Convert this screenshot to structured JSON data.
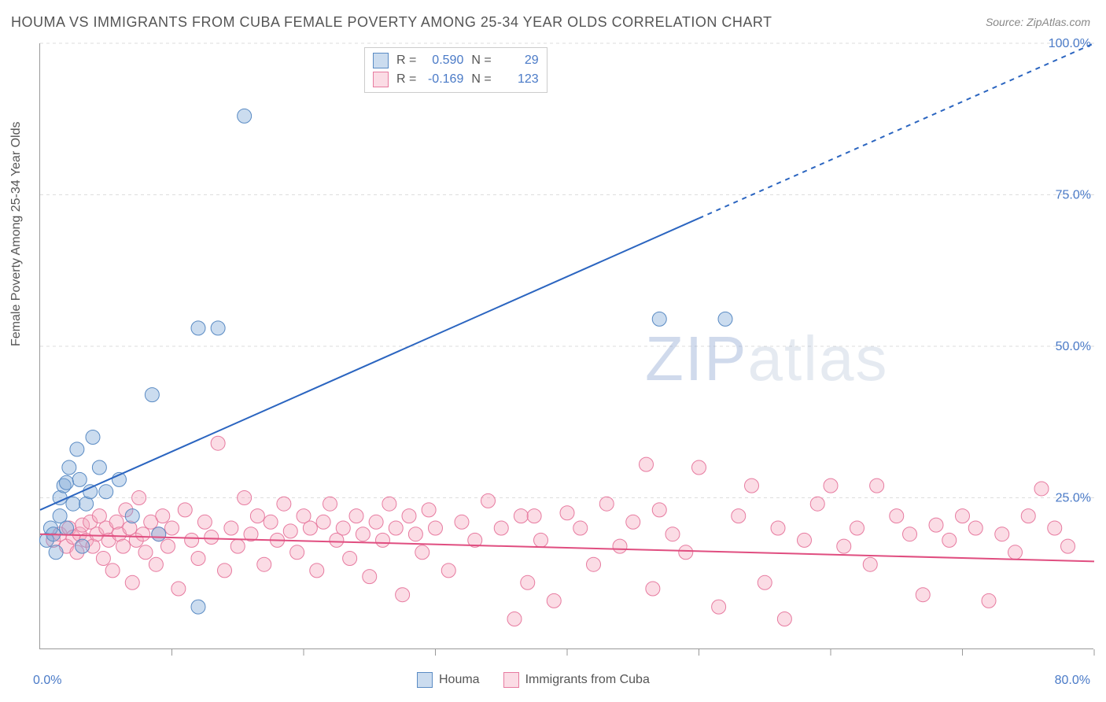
{
  "title": "HOUMA VS IMMIGRANTS FROM CUBA FEMALE POVERTY AMONG 25-34 YEAR OLDS CORRELATION CHART",
  "source": "Source: ZipAtlas.com",
  "y_axis_label": "Female Poverty Among 25-34 Year Olds",
  "watermark": "ZIPatlas",
  "chart": {
    "type": "scatter",
    "background_color": "#ffffff",
    "grid_color": "#dddddd",
    "axis_color": "#999999",
    "xlim": [
      0,
      80
    ],
    "ylim": [
      0,
      100
    ],
    "x_ticks": [
      0,
      10,
      20,
      30,
      40,
      50,
      60,
      70,
      80
    ],
    "y_ticks": [
      25,
      50,
      75,
      100
    ],
    "y_tick_labels": [
      "25.0%",
      "50.0%",
      "75.0%",
      "100.0%"
    ],
    "x_min_label": "0.0%",
    "x_max_label": "80.0%",
    "label_fontsize": 16,
    "tick_color": "#4a7ac7",
    "point_radius": 9,
    "point_opacity": 0.45,
    "series": [
      {
        "name": "Houma",
        "color": "#7ca7d8",
        "fill": "rgba(124,167,216,0.4)",
        "stroke": "#5a8bc4",
        "R": "0.590",
        "N": "29",
        "trend": {
          "x1": 0,
          "y1": 23,
          "x2": 80,
          "y2": 100,
          "solid_until_x": 50,
          "color": "#2b65c0",
          "width": 2
        },
        "points": [
          [
            0.5,
            18
          ],
          [
            0.8,
            20
          ],
          [
            1,
            19
          ],
          [
            1.2,
            16
          ],
          [
            1.5,
            22
          ],
          [
            1.5,
            25
          ],
          [
            1.8,
            27
          ],
          [
            2,
            27.5
          ],
          [
            2,
            20
          ],
          [
            2.2,
            30
          ],
          [
            2.5,
            24
          ],
          [
            2.8,
            33
          ],
          [
            3,
            28
          ],
          [
            3.2,
            17
          ],
          [
            3.5,
            24
          ],
          [
            3.8,
            26
          ],
          [
            4,
            35
          ],
          [
            4.5,
            30
          ],
          [
            5,
            26
          ],
          [
            6,
            28
          ],
          [
            7,
            22
          ],
          [
            8.5,
            42
          ],
          [
            9,
            19
          ],
          [
            12,
            53
          ],
          [
            13.5,
            53
          ],
          [
            12,
            7
          ],
          [
            15.5,
            88
          ],
          [
            47,
            54.5
          ],
          [
            52,
            54.5
          ]
        ]
      },
      {
        "name": "Immigrants from Cuba",
        "color": "#f5a8bd",
        "fill": "rgba(245,168,189,0.4)",
        "stroke": "#e77ba0",
        "R": "-0.169",
        "N": "123",
        "trend": {
          "x1": 0,
          "y1": 19,
          "x2": 80,
          "y2": 14.5,
          "solid_until_x": 80,
          "color": "#e04e80",
          "width": 2
        },
        "points": [
          [
            1,
            18
          ],
          [
            1.5,
            19
          ],
          [
            2,
            17
          ],
          [
            2.2,
            20
          ],
          [
            2.5,
            18.5
          ],
          [
            2.8,
            16
          ],
          [
            3,
            19
          ],
          [
            3.2,
            20.5
          ],
          [
            3.5,
            18
          ],
          [
            3.8,
            21
          ],
          [
            4,
            17
          ],
          [
            4.3,
            19
          ],
          [
            4.5,
            22
          ],
          [
            4.8,
            15
          ],
          [
            5,
            20
          ],
          [
            5.2,
            18
          ],
          [
            5.5,
            13
          ],
          [
            5.8,
            21
          ],
          [
            6,
            19
          ],
          [
            6.3,
            17
          ],
          [
            6.5,
            23
          ],
          [
            6.8,
            20
          ],
          [
            7,
            11
          ],
          [
            7.3,
            18
          ],
          [
            7.5,
            25
          ],
          [
            7.8,
            19
          ],
          [
            8,
            16
          ],
          [
            8.4,
            21
          ],
          [
            8.8,
            14
          ],
          [
            9,
            19
          ],
          [
            9.3,
            22
          ],
          [
            9.7,
            17
          ],
          [
            10,
            20
          ],
          [
            10.5,
            10
          ],
          [
            11,
            23
          ],
          [
            11.5,
            18
          ],
          [
            12,
            15
          ],
          [
            12.5,
            21
          ],
          [
            13,
            18.5
          ],
          [
            13.5,
            34
          ],
          [
            14,
            13
          ],
          [
            14.5,
            20
          ],
          [
            15,
            17
          ],
          [
            15.5,
            25
          ],
          [
            16,
            19
          ],
          [
            16.5,
            22
          ],
          [
            17,
            14
          ],
          [
            17.5,
            21
          ],
          [
            18,
            18
          ],
          [
            18.5,
            24
          ],
          [
            19,
            19.5
          ],
          [
            19.5,
            16
          ],
          [
            20,
            22
          ],
          [
            20.5,
            20
          ],
          [
            21,
            13
          ],
          [
            21.5,
            21
          ],
          [
            22,
            24
          ],
          [
            22.5,
            18
          ],
          [
            23,
            20
          ],
          [
            23.5,
            15
          ],
          [
            24,
            22
          ],
          [
            24.5,
            19
          ],
          [
            25,
            12
          ],
          [
            25.5,
            21
          ],
          [
            26,
            18
          ],
          [
            26.5,
            24
          ],
          [
            27,
            20
          ],
          [
            27.5,
            9
          ],
          [
            28,
            22
          ],
          [
            28.5,
            19
          ],
          [
            29,
            16
          ],
          [
            29.5,
            23
          ],
          [
            30,
            20
          ],
          [
            31,
            13
          ],
          [
            32,
            21
          ],
          [
            33,
            18
          ],
          [
            34,
            24.5
          ],
          [
            35,
            20
          ],
          [
            36,
            5
          ],
          [
            36.5,
            22
          ],
          [
            37,
            11
          ],
          [
            37.5,
            22
          ],
          [
            38,
            18
          ],
          [
            39,
            8
          ],
          [
            40,
            22.5
          ],
          [
            41,
            20
          ],
          [
            42,
            14
          ],
          [
            43,
            24
          ],
          [
            44,
            17
          ],
          [
            45,
            21
          ],
          [
            46,
            30.5
          ],
          [
            46.5,
            10
          ],
          [
            47,
            23
          ],
          [
            48,
            19
          ],
          [
            49,
            16
          ],
          [
            50,
            30
          ],
          [
            51.5,
            7
          ],
          [
            53,
            22
          ],
          [
            54,
            27
          ],
          [
            55,
            11
          ],
          [
            56,
            20
          ],
          [
            56.5,
            5
          ],
          [
            58,
            18
          ],
          [
            59,
            24
          ],
          [
            60,
            27
          ],
          [
            61,
            17
          ],
          [
            62,
            20
          ],
          [
            63,
            14
          ],
          [
            63.5,
            27
          ],
          [
            65,
            22
          ],
          [
            66,
            19
          ],
          [
            67,
            9
          ],
          [
            68,
            20.5
          ],
          [
            69,
            18
          ],
          [
            70,
            22
          ],
          [
            71,
            20
          ],
          [
            72,
            8
          ],
          [
            73,
            19
          ],
          [
            74,
            16
          ],
          [
            75,
            22
          ],
          [
            76,
            26.5
          ],
          [
            77,
            20
          ],
          [
            78,
            17
          ]
        ]
      }
    ]
  },
  "stats_box": {
    "R_label": "R =",
    "N_label": "N ="
  },
  "bottom_legend": {
    "items": [
      "Houma",
      "Immigrants from Cuba"
    ]
  }
}
